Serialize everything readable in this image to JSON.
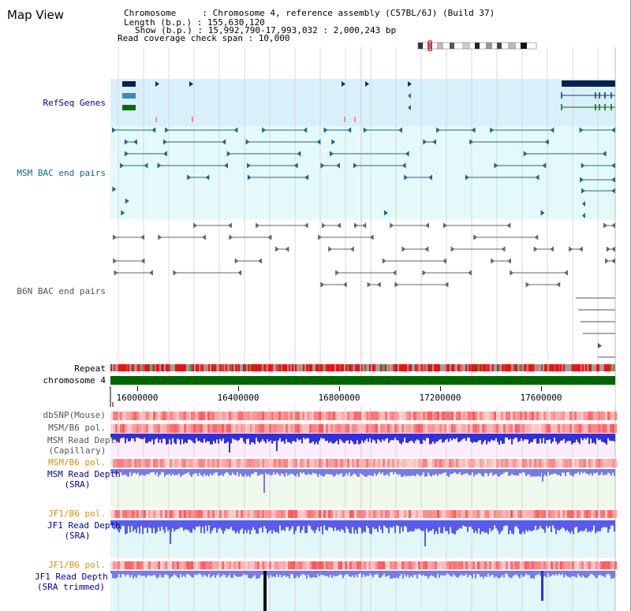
{
  "title": "Map View",
  "info": {
    "line1": "Chromosome     : Chromosome 4, reference assembly (C57BL/6J) (Build 37)",
    "line2": "Length (b.p.) : 155,630,120",
    "line3": "Show (b.p.) : 15,992,790-17,993,032 : 2,000,243 bp",
    "line4": "Read coverage check span : 10,000"
  },
  "tracks": {
    "refseq": "RefSeq Genes",
    "msm_bac": "MSM BAC end pairs",
    "b6n_bac": "B6N BAC end pairs",
    "repeat": "Repeat",
    "chromosome": "chromosome 4",
    "dbsnp": "dbSNP(Mouse)",
    "msm_b6_pol_1": "MSM/B6 pol.",
    "msm_depth_cap": "MSM Read Depth\n(Capillary)",
    "msm_b6_pol_2": "MSM/B6 pol.",
    "msm_depth_sra": "MSM Read Depth\n(SRA)",
    "jf1_b6_pol_1": "JF1/B6 pol.",
    "jf1_depth_sra": "JF1 Read Depth\n(SRA)",
    "jf1_b6_pol_2": "JF1/B6 pol.",
    "jf1_depth_trim": "JF1 Read Depth\n(SRA trimmed)"
  },
  "axis": {
    "ticks": [
      "16000000",
      "16400000",
      "16800000",
      "17200000",
      "17600000"
    ]
  },
  "colors": {
    "label_blue": "#0000aa",
    "label_teal": "#006f80",
    "label_gray": "#555555",
    "label_orange": "#e09000",
    "chromosome_bar": "#006400",
    "refseq_dark": "#002050",
    "refseq_mid": "#3a8ac0",
    "refseq_green": "#007000"
  }
}
